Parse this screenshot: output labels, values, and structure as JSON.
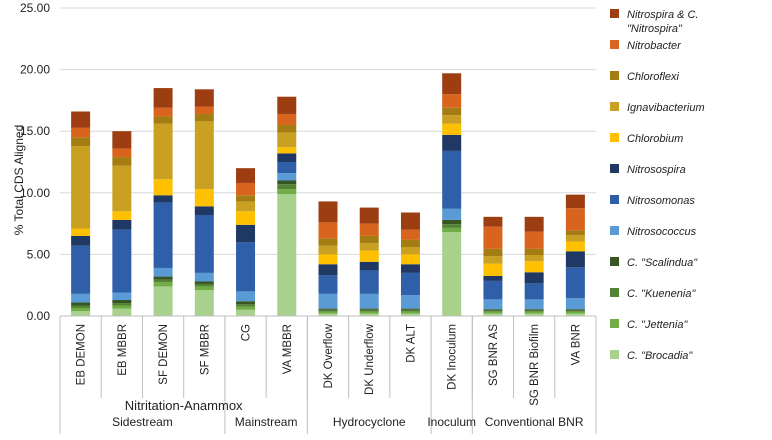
{
  "chart_data": {
    "type": "bar",
    "stacked": true,
    "ylabel": "% Total CDS Aligned",
    "ylim": [
      0,
      25
    ],
    "yticks": [
      "0.00",
      "5.00",
      "10.00",
      "15.00",
      "20.00",
      "25.00"
    ],
    "ytick_values": [
      0,
      5,
      10,
      15,
      20,
      25
    ],
    "categories": [
      "EB DEMON",
      "EB MBBR",
      "SF DEMON",
      "SF MBBR",
      "CG",
      "VA MBBR",
      "DK Overflow",
      "DK Underflow",
      "DK ALT",
      "DK Inoculum",
      "SG BNR AS",
      "SG BNR Biofilm",
      "VA BNR"
    ],
    "groups": [
      {
        "label": "Sidestream",
        "count": 4
      },
      {
        "label": "Mainstream",
        "count": 2
      },
      {
        "label": "Hydrocyclone",
        "count": 3
      },
      {
        "label": "Inoculum",
        "count": 1
      },
      {
        "label": "Conventional BNR",
        "count": 3
      }
    ],
    "supergroup": {
      "label": "Nitritation-Anammox",
      "count": 6
    },
    "series": [
      {
        "name": "C. \"Brocadia\"",
        "color": "#a9d18e",
        "values": [
          0.4,
          0.6,
          2.4,
          2.1,
          0.5,
          9.9,
          0.2,
          0.2,
          0.2,
          6.8,
          0.2,
          0.2,
          0.2
        ]
      },
      {
        "name": "C. \"Jettenia\"",
        "color": "#70ad47",
        "values": [
          0.25,
          0.25,
          0.35,
          0.3,
          0.25,
          0.4,
          0.15,
          0.15,
          0.15,
          0.35,
          0.15,
          0.15,
          0.15
        ]
      },
      {
        "name": "C. \"Kuenenia\"",
        "color": "#548235",
        "values": [
          0.2,
          0.2,
          0.2,
          0.2,
          0.2,
          0.4,
          0.15,
          0.15,
          0.15,
          0.3,
          0.1,
          0.1,
          0.1
        ]
      },
      {
        "name": "C. \"Scalindua\"",
        "color": "#375623",
        "values": [
          0.25,
          0.25,
          0.25,
          0.2,
          0.25,
          0.3,
          0.1,
          0.1,
          0.1,
          0.35,
          0.1,
          0.1,
          0.1
        ]
      },
      {
        "name": "Nitrosococcus",
        "color": "#5b9bd5",
        "values": [
          0.7,
          0.6,
          0.7,
          0.7,
          0.8,
          0.6,
          1.2,
          1.2,
          1.1,
          0.9,
          0.8,
          0.8,
          0.9
        ]
      },
      {
        "name": "Nitrosomonas",
        "color": "#2e5fa8",
        "values": [
          3.9,
          5.1,
          5.3,
          4.7,
          4.0,
          0.9,
          1.5,
          1.9,
          1.8,
          4.7,
          1.5,
          1.3,
          2.5
        ]
      },
      {
        "name": "Nitrosospira",
        "color": "#203864",
        "values": [
          0.8,
          0.8,
          0.6,
          0.7,
          1.4,
          0.7,
          0.9,
          0.7,
          0.7,
          1.3,
          0.4,
          0.9,
          1.3
        ]
      },
      {
        "name": "Chlorobium",
        "color": "#ffc000",
        "values": [
          0.6,
          0.7,
          1.3,
          1.4,
          1.1,
          0.5,
          0.8,
          0.9,
          0.8,
          0.9,
          1.0,
          0.9,
          0.8
        ]
      },
      {
        "name": "Ignavibacterium",
        "color": "#c9a021",
        "values": [
          6.7,
          3.7,
          4.5,
          5.5,
          0.8,
          1.2,
          0.7,
          0.6,
          0.6,
          0.7,
          0.6,
          0.5,
          0.5
        ]
      },
      {
        "name": "Chloroflexi",
        "color": "#a47d12",
        "values": [
          0.7,
          0.7,
          0.6,
          0.6,
          0.5,
          0.6,
          0.6,
          0.6,
          0.6,
          0.6,
          0.6,
          0.5,
          0.4
        ]
      },
      {
        "name": "Nitrobacter",
        "color": "#d8641e",
        "values": [
          0.8,
          0.7,
          0.7,
          0.6,
          1.0,
          0.9,
          1.3,
          1.0,
          0.8,
          1.1,
          1.8,
          1.4,
          1.8
        ]
      },
      {
        "name": "Nitrospira & C. \"Nitrospira\"",
        "color": "#9c3d12",
        "values": [
          1.3,
          1.4,
          1.6,
          1.4,
          1.2,
          1.4,
          1.7,
          1.3,
          1.4,
          1.7,
          0.8,
          1.2,
          1.1
        ]
      }
    ]
  }
}
